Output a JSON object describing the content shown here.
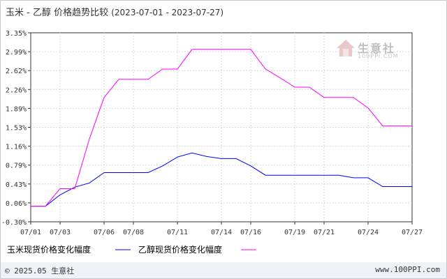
{
  "title": {
    "main": "玉米 - 乙醇 价格趋势比较",
    "range": "(2023-07-01 - 2023-07-27)"
  },
  "logo": {
    "text": "生意社",
    "sub": "100PPI.COM"
  },
  "footer": {
    "left": "© 2025.05 生意社",
    "right": "www.100PPI.com"
  },
  "colors": {
    "corn": "#0000ff",
    "ethanol": "#ff00ff",
    "grid": "#d8d8d8",
    "axis": "#333333"
  },
  "chart_data": {
    "type": "line",
    "x": [
      "07/01",
      "07/02",
      "07/03",
      "07/04",
      "07/05",
      "07/06",
      "07/07",
      "07/08",
      "07/09",
      "07/10",
      "07/11",
      "07/12",
      "07/13",
      "07/14",
      "07/15",
      "07/16",
      "07/17",
      "07/18",
      "07/19",
      "07/20",
      "07/21",
      "07/22",
      "07/23",
      "07/24",
      "07/25",
      "07/26",
      "07/27"
    ],
    "x_ticks": [
      "07/01",
      "07/03",
      "07/06",
      "07/08",
      "07/11",
      "07/14",
      "07/16",
      "07/19",
      "07/21",
      "07/24",
      "07/27"
    ],
    "y_ticks": [
      "3.35%",
      "2.99%",
      "2.62%",
      "2.26%",
      "1.89%",
      "1.53%",
      "1.16%",
      "0.79%",
      "0.43%",
      "0.06%",
      "-0.30%"
    ],
    "ylim": [
      -0.3,
      3.35
    ],
    "series": [
      {
        "name": "玉米现货价格变化幅度",
        "values": [
          0.0,
          0.0,
          0.22,
          0.37,
          0.45,
          0.65,
          0.65,
          0.65,
          0.65,
          0.78,
          0.95,
          1.03,
          0.96,
          0.92,
          0.92,
          0.78,
          0.6,
          0.6,
          0.6,
          0.6,
          0.6,
          0.6,
          0.55,
          0.55,
          0.38,
          0.38,
          0.38
        ]
      },
      {
        "name": "乙醇现货价格变化幅度",
        "values": [
          0.0,
          0.0,
          0.34,
          0.34,
          1.3,
          2.1,
          2.45,
          2.45,
          2.45,
          2.65,
          2.65,
          3.03,
          3.03,
          3.03,
          3.03,
          3.03,
          2.65,
          2.48,
          2.3,
          2.3,
          2.1,
          2.1,
          2.1,
          1.9,
          1.55,
          1.55,
          1.55
        ]
      }
    ]
  }
}
